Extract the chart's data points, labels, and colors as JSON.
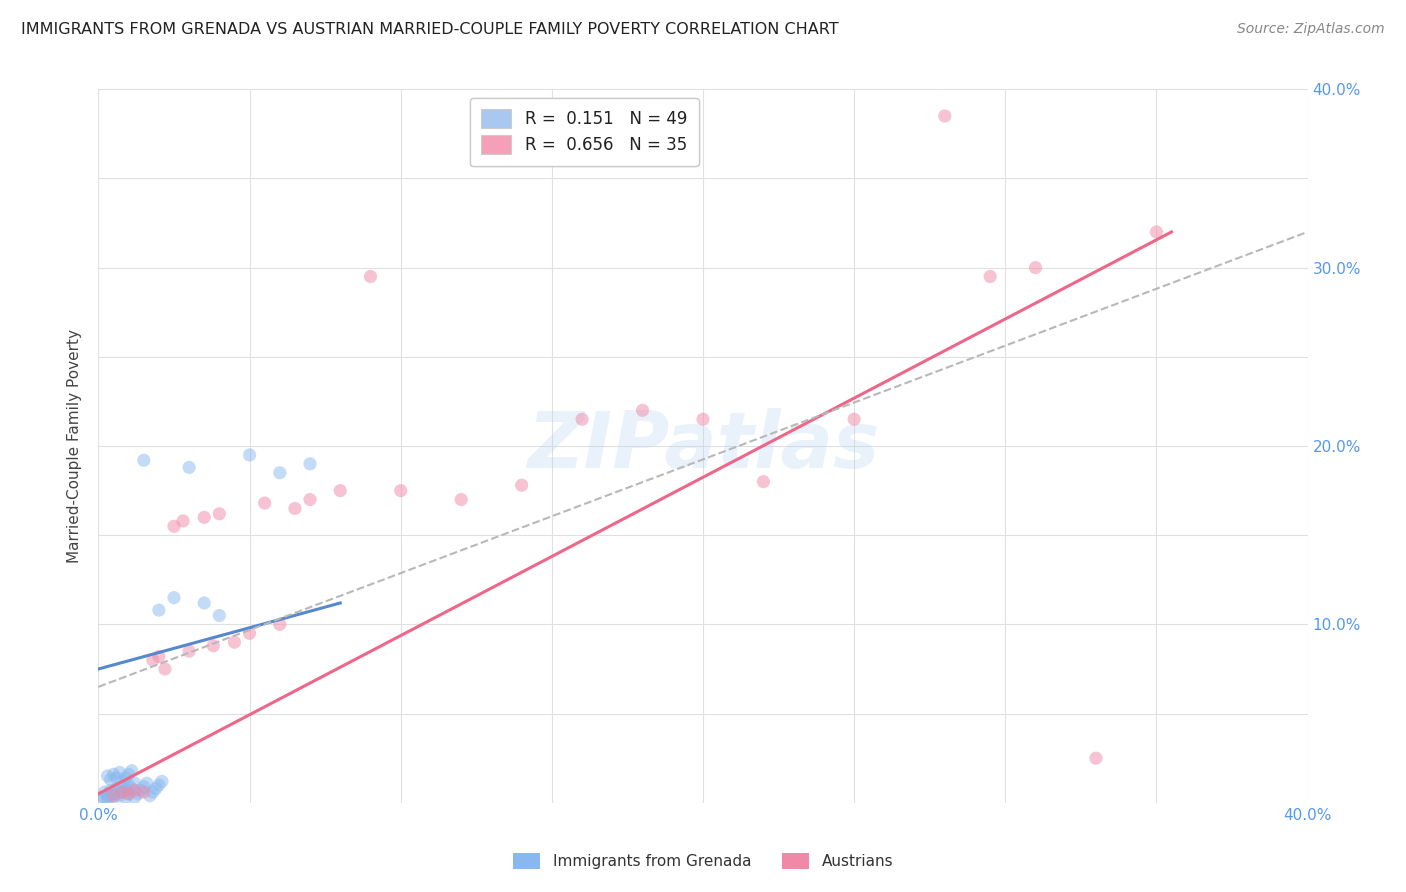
{
  "title": "IMMIGRANTS FROM GRENADA VS AUSTRIAN MARRIED-COUPLE FAMILY POVERTY CORRELATION CHART",
  "source": "Source: ZipAtlas.com",
  "ylabel": "Married-Couple Family Poverty",
  "xlim": [
    0.0,
    0.4
  ],
  "ylim": [
    0.0,
    0.4
  ],
  "xticks": [
    0.0,
    0.05,
    0.1,
    0.15,
    0.2,
    0.25,
    0.3,
    0.35,
    0.4
  ],
  "xticklabels": [
    "0.0%",
    "",
    "",
    "",
    "",
    "",
    "",
    "",
    "40.0%"
  ],
  "yticks_right": [
    0.0,
    0.05,
    0.1,
    0.15,
    0.2,
    0.25,
    0.3,
    0.35,
    0.4
  ],
  "yticklabels_right": [
    "",
    "",
    "10.0%",
    "",
    "20.0%",
    "",
    "30.0%",
    "",
    "40.0%"
  ],
  "legend_entry1": {
    "R": "0.151",
    "N": "49",
    "color": "#a8c8f0"
  },
  "legend_entry2": {
    "R": "0.656",
    "N": "35",
    "color": "#f5a0b8"
  },
  "legend_labels": [
    "Immigrants from Grenada",
    "Austrians"
  ],
  "grenada_x": [
    0.002,
    0.003,
    0.004,
    0.005,
    0.006,
    0.007,
    0.008,
    0.009,
    0.01,
    0.011,
    0.012,
    0.013,
    0.014,
    0.015,
    0.016,
    0.017,
    0.018,
    0.019,
    0.02,
    0.021,
    0.003,
    0.004,
    0.005,
    0.006,
    0.007,
    0.008,
    0.009,
    0.01,
    0.011,
    0.012,
    0.001,
    0.002,
    0.003,
    0.004,
    0.005,
    0.006,
    0.007,
    0.008,
    0.009,
    0.01,
    0.015,
    0.02,
    0.025,
    0.03,
    0.035,
    0.04,
    0.05,
    0.06,
    0.07
  ],
  "grenada_y": [
    0.006,
    0.004,
    0.007,
    0.005,
    0.008,
    0.006,
    0.009,
    0.007,
    0.01,
    0.008,
    0.003,
    0.005,
    0.007,
    0.009,
    0.011,
    0.004,
    0.006,
    0.008,
    0.01,
    0.012,
    0.015,
    0.013,
    0.016,
    0.014,
    0.017,
    0.012,
    0.014,
    0.016,
    0.018,
    0.011,
    0.002,
    0.003,
    0.002,
    0.004,
    0.003,
    0.005,
    0.004,
    0.006,
    0.003,
    0.005,
    0.192,
    0.108,
    0.115,
    0.188,
    0.112,
    0.105,
    0.195,
    0.185,
    0.19
  ],
  "austrian_x": [
    0.005,
    0.008,
    0.01,
    0.012,
    0.015,
    0.018,
    0.02,
    0.022,
    0.025,
    0.028,
    0.03,
    0.035,
    0.038,
    0.04,
    0.045,
    0.05,
    0.055,
    0.06,
    0.065,
    0.07,
    0.08,
    0.09,
    0.1,
    0.12,
    0.14,
    0.16,
    0.18,
    0.2,
    0.22,
    0.25,
    0.28,
    0.295,
    0.31,
    0.33,
    0.35
  ],
  "austrian_y": [
    0.004,
    0.006,
    0.005,
    0.007,
    0.006,
    0.08,
    0.082,
    0.075,
    0.155,
    0.158,
    0.085,
    0.16,
    0.088,
    0.162,
    0.09,
    0.095,
    0.168,
    0.1,
    0.165,
    0.17,
    0.175,
    0.295,
    0.175,
    0.17,
    0.178,
    0.215,
    0.22,
    0.215,
    0.18,
    0.215,
    0.385,
    0.295,
    0.3,
    0.025,
    0.32
  ],
  "grenada_line": {
    "x0": 0.0,
    "x1": 0.08,
    "y0": 0.075,
    "y1": 0.112
  },
  "austrian_line": {
    "x0": 0.0,
    "x1": 0.355,
    "y0": 0.005,
    "y1": 0.32
  },
  "dashed_line": {
    "x0": 0.0,
    "x1": 0.4,
    "y0": 0.065,
    "y1": 0.32
  },
  "grenada_color": "#88b8ee",
  "austrian_color": "#f088a8",
  "grenada_line_color": "#5588cc",
  "austrian_line_color": "#ee6688",
  "dashed_line_color": "#b8b8b8",
  "background_color": "#ffffff",
  "grid_color": "#e0e0e0",
  "title_color": "#222222",
  "tick_label_color": "#5599ee",
  "marker_size": 90,
  "marker_alpha": 0.5
}
